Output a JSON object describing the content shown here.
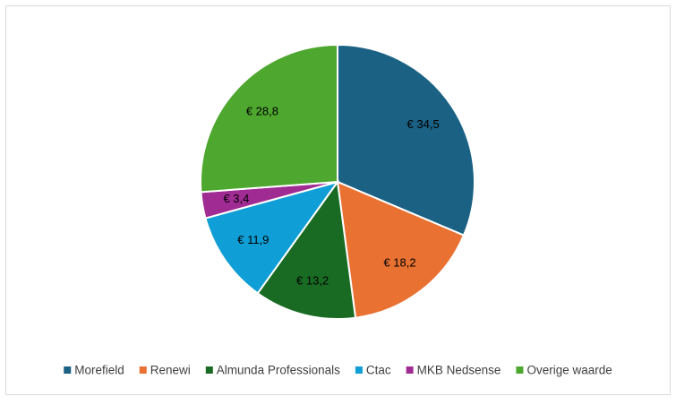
{
  "chart_data": {
    "type": "pie",
    "categories": [
      "Morefield",
      "Renewi",
      "Almunda Professionals",
      "Ctac",
      "MKB Nedsense",
      "Overige waarde"
    ],
    "values": [
      34.5,
      18.2,
      13.2,
      11.9,
      3.4,
      28.8
    ],
    "value_labels": [
      "€ 34,5",
      "€ 18,2",
      "€ 13,2",
      "€ 11,9",
      "€ 3,4",
      "€ 28,8"
    ],
    "colors": [
      "#1a6184",
      "#e97132",
      "#196b24",
      "#0f9ed5",
      "#a02b93",
      "#4ea72e"
    ],
    "legend": "bottom"
  }
}
